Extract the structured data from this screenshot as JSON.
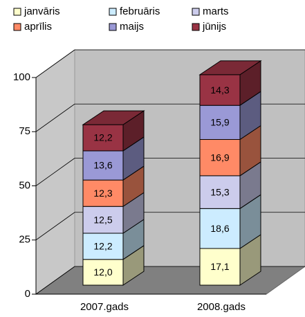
{
  "chart_data": {
    "type": "bar3d_stacked",
    "categories": [
      "2007.gads",
      "2008.gads"
    ],
    "series": [
      {
        "name": "janvāris",
        "color": "#ffffcc",
        "values": [
          12.0,
          17.1
        ],
        "value_labels": [
          "12,0",
          "17,1"
        ]
      },
      {
        "name": "februāris",
        "color": "#ccecff",
        "values": [
          12.2,
          18.6
        ],
        "value_labels": [
          "12,2",
          "18,6"
        ]
      },
      {
        "name": "marts",
        "color": "#ccccec",
        "values": [
          12.5,
          15.3
        ],
        "value_labels": [
          "12,5",
          "15,3"
        ]
      },
      {
        "name": "aprīlis",
        "color": "#ff8a66",
        "values": [
          12.3,
          16.9
        ],
        "value_labels": [
          "12,3",
          "16,9"
        ]
      },
      {
        "name": "maijs",
        "color": "#9a99d6",
        "values": [
          13.6,
          15.9
        ],
        "value_labels": [
          "13,6",
          "15,9"
        ]
      },
      {
        "name": "jūnijs",
        "color": "#993344",
        "values": [
          12.2,
          14.3
        ],
        "value_labels": [
          "12,2",
          "14,3"
        ]
      }
    ],
    "ylim": [
      0,
      100
    ],
    "yticks": [
      0,
      25,
      50,
      75,
      100
    ],
    "grid": true
  }
}
